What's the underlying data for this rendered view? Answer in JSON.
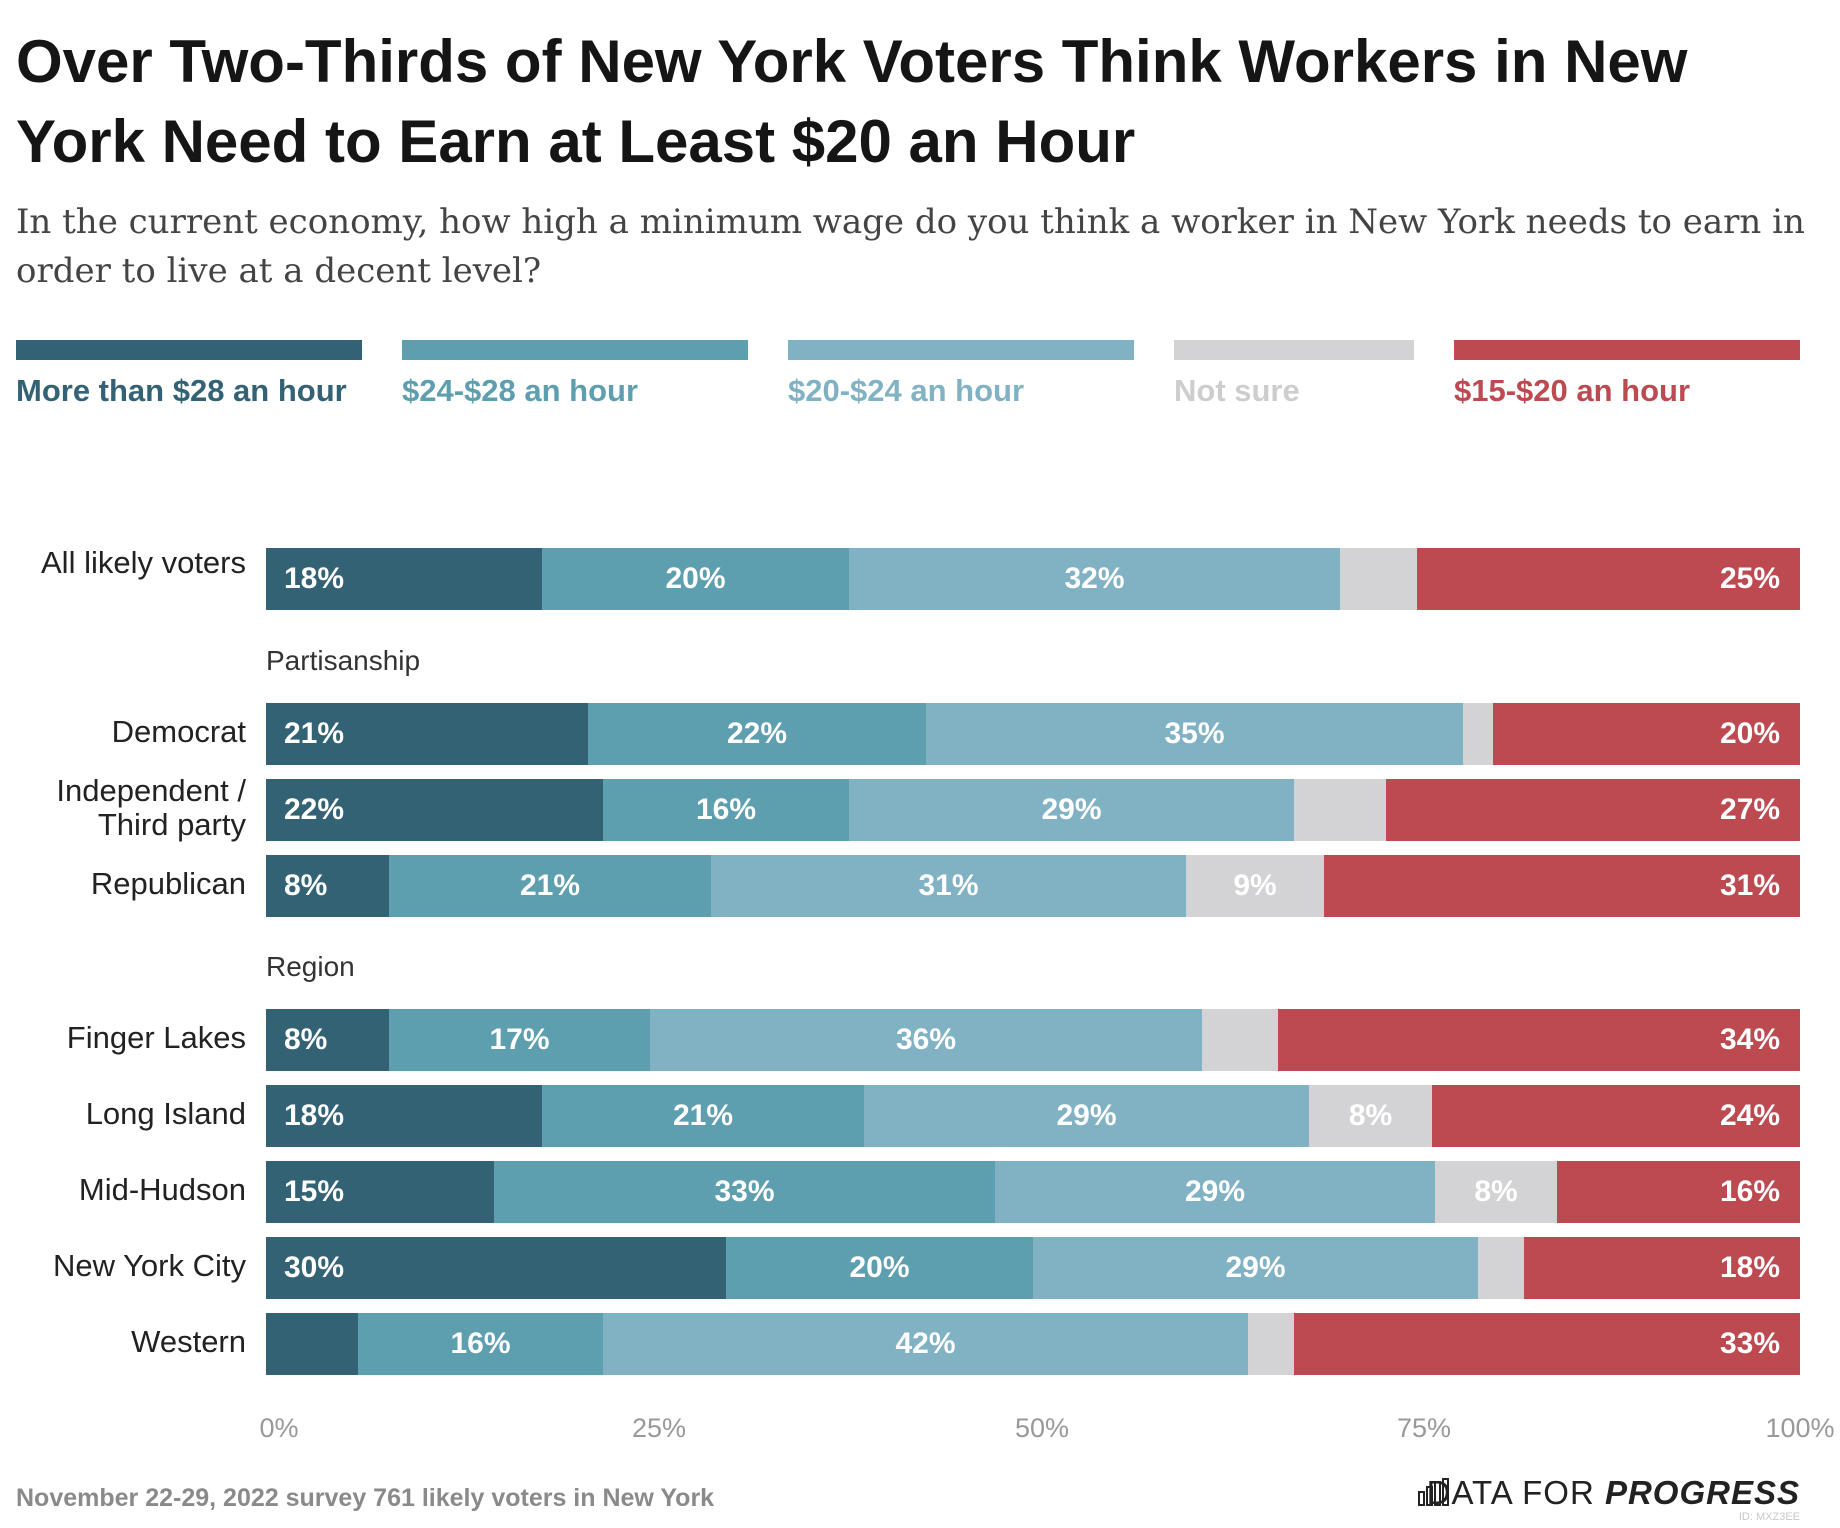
{
  "title": "Over Two-Thirds of New York Voters Think Workers in New York Need to Earn at Least $20 an Hour",
  "subtitle": "In the current economy, how high a minimum wage do you think a worker in New York needs to earn in order to live at a decent level?",
  "footer": "November 22-29, 2022 survey 761 likely voters in New York",
  "brand": {
    "light": "DATA FOR",
    "bold": "PROGRESS",
    "icon": "bar-chart-logo-icon",
    "id": "ID: MXZ3EE"
  },
  "colors": {
    "more28": "#336275",
    "24to28": "#5d9eaf",
    "20to24": "#80b2c4",
    "notsure": "#d3d3d5",
    "15to20": "#bd4a51"
  },
  "chart_data": {
    "type": "bar",
    "orientation": "horizontal",
    "stacked": true,
    "xlim": [
      0,
      100
    ],
    "x_ticks": [
      "0%",
      "25%",
      "50%",
      "75%",
      "100%"
    ],
    "legend": [
      {
        "key": "more28",
        "label": "More than $28 an hour"
      },
      {
        "key": "24to28",
        "label": "$24-$28 an hour"
      },
      {
        "key": "20to24",
        "label": "$20-$24 an hour"
      },
      {
        "key": "notsure",
        "label": "Not sure"
      },
      {
        "key": "15to20",
        "label": "$15-$20 an hour"
      }
    ],
    "groups": [
      {
        "name": "",
        "rows": [
          {
            "label": "All likely voters",
            "values": [
              18,
              20,
              32,
              5,
              25
            ],
            "labels": [
              "18%",
              "20%",
              "32%",
              "",
              "25%"
            ]
          }
        ]
      },
      {
        "name": "Partisanship",
        "rows": [
          {
            "label": "Democrat",
            "values": [
              21,
              22,
              35,
              2,
              20
            ],
            "labels": [
              "21%",
              "22%",
              "35%",
              "",
              "20%"
            ]
          },
          {
            "label": "Independent / Third party",
            "values": [
              22,
              16,
              29,
              6,
              27
            ],
            "labels": [
              "22%",
              "16%",
              "29%",
              "",
              "27%"
            ]
          },
          {
            "label": "Republican",
            "values": [
              8,
              21,
              31,
              9,
              31
            ],
            "labels": [
              "8%",
              "21%",
              "31%",
              "9%",
              "31%"
            ]
          }
        ]
      },
      {
        "name": "Region",
        "rows": [
          {
            "label": "Finger Lakes",
            "values": [
              8,
              17,
              36,
              5,
              34
            ],
            "labels": [
              "8%",
              "17%",
              "36%",
              "",
              "34%"
            ]
          },
          {
            "label": "Long Island",
            "values": [
              18,
              21,
              29,
              8,
              24
            ],
            "labels": [
              "18%",
              "21%",
              "29%",
              "8%",
              "24%"
            ]
          },
          {
            "label": "Mid-Hudson",
            "values": [
              15,
              33,
              29,
              8,
              16
            ],
            "labels": [
              "15%",
              "33%",
              "29%",
              "8%",
              "16%"
            ]
          },
          {
            "label": "New York City",
            "values": [
              30,
              20,
              29,
              3,
              18
            ],
            "labels": [
              "30%",
              "20%",
              "29%",
              "",
              "18%"
            ]
          },
          {
            "label": "Western",
            "values": [
              6,
              16,
              42,
              3,
              33
            ],
            "labels": [
              "",
              "16%",
              "42%",
              "",
              "33%"
            ]
          }
        ]
      }
    ]
  }
}
